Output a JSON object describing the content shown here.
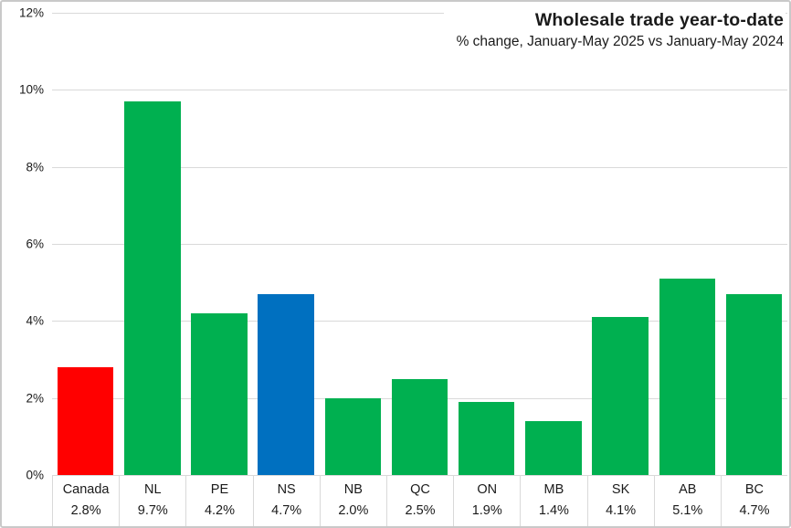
{
  "chart_data": {
    "type": "bar",
    "title": "Wholesale trade year-to-date",
    "subtitle": "% change, January-May 2025 vs January-May 2024",
    "categories": [
      "Canada",
      "NL",
      "PE",
      "NS",
      "NB",
      "QC",
      "ON",
      "MB",
      "SK",
      "AB",
      "BC"
    ],
    "values": [
      2.8,
      9.7,
      4.2,
      4.7,
      2.0,
      2.5,
      1.9,
      1.4,
      4.1,
      5.1,
      4.7
    ],
    "value_labels": [
      "2.8%",
      "9.7%",
      "4.2%",
      "4.7%",
      "2.0%",
      "2.5%",
      "1.9%",
      "1.4%",
      "4.1%",
      "5.1%",
      "4.7%"
    ],
    "bar_colors": [
      "#ff0000",
      "#00b050",
      "#00b050",
      "#0070c0",
      "#00b050",
      "#00b050",
      "#00b050",
      "#00b050",
      "#00b050",
      "#00b050",
      "#00b050"
    ],
    "y_axis": {
      "tick_labels": [
        "12%",
        "10%",
        "8%",
        "6%",
        "4%",
        "2%",
        "0%"
      ],
      "tick_values": [
        12,
        10,
        8,
        6,
        4,
        2,
        0
      ],
      "min": 0,
      "max": 12
    },
    "xlabel": "",
    "ylabel": "",
    "grid": "horizontal",
    "legend": "none"
  },
  "styles": {
    "accent_canada": "#ff0000",
    "accent_province": "#00b050",
    "accent_nova_scotia": "#0070c0",
    "gridline_color": "#d9d9d9",
    "border_color": "#c9c9c9",
    "text_color": "#1a1a1a",
    "background": "#ffffff"
  }
}
